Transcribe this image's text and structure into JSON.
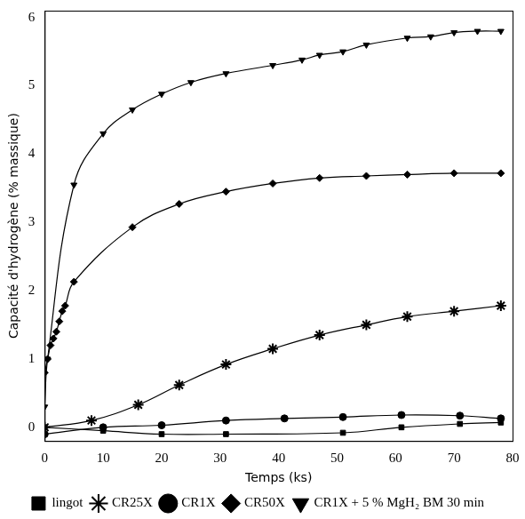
{
  "chart_data": {
    "type": "line",
    "x_label": "Temps (ks)",
    "y_label": "Capacité d'hydrogène (% massique)",
    "xlim": [
      0,
      80
    ],
    "xticks": [
      0,
      10,
      20,
      30,
      40,
      50,
      60,
      70,
      80
    ],
    "ylim": [
      -0.2,
      6.1
    ],
    "yticks": [
      0,
      1,
      2,
      3,
      4,
      5,
      6
    ],
    "grid": false,
    "legend": "bottom",
    "series": [
      {
        "name": "lingot",
        "color": "#000000",
        "marker": "square",
        "x": [
          0,
          10,
          20,
          31,
          51,
          61,
          71,
          78
        ],
        "values": [
          0,
          -0.05,
          -0.1,
          -0.1,
          -0.08,
          0.0,
          0.05,
          0.07
        ]
      },
      {
        "name": "CR25X",
        "color": "#000000",
        "marker": "star",
        "x": [
          0,
          8,
          16,
          23,
          31,
          39,
          47,
          55,
          62,
          70,
          78
        ],
        "values": [
          0,
          0.1,
          0.33,
          0.62,
          0.92,
          1.15,
          1.35,
          1.5,
          1.62,
          1.7,
          1.78
        ]
      },
      {
        "name": "CR1X",
        "color": "#000000",
        "marker": "circle",
        "x": [
          0,
          10,
          20,
          31,
          41,
          51,
          61,
          71,
          78
        ],
        "values": [
          -0.1,
          0,
          0.03,
          0.1,
          0.13,
          0.15,
          0.18,
          0.17,
          0.13
        ]
      },
      {
        "name": "CR50X",
        "color": "#000000",
        "marker": "diamond",
        "x": [
          0,
          0.5,
          1,
          1.5,
          2,
          2.5,
          3,
          3.5,
          5,
          15,
          23,
          31,
          39,
          47,
          55,
          62,
          70,
          78
        ],
        "values": [
          0.8,
          1.0,
          1.2,
          1.3,
          1.4,
          1.55,
          1.7,
          1.78,
          2.13,
          2.93,
          3.27,
          3.45,
          3.57,
          3.65,
          3.68,
          3.7,
          3.72,
          3.72
        ]
      },
      {
        "name": "CR1X + 5 % MgH₂ BM 30 min",
        "color": "#000000",
        "marker": "triangle_down",
        "x": [
          0,
          0.5,
          5,
          10,
          15,
          20,
          25,
          31,
          39,
          44,
          47,
          51,
          55,
          62,
          66,
          70,
          74,
          78
        ],
        "values": [
          0.3,
          1.0,
          3.55,
          4.3,
          4.65,
          4.88,
          5.05,
          5.18,
          5.3,
          5.38,
          5.45,
          5.5,
          5.6,
          5.7,
          5.72,
          5.78,
          5.8,
          5.8
        ]
      }
    ]
  }
}
